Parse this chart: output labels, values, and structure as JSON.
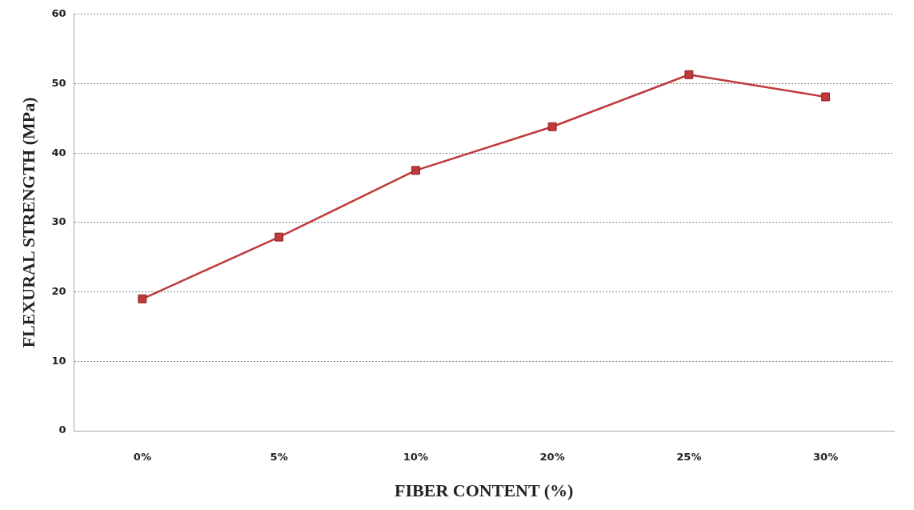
{
  "chart_data": {
    "type": "line",
    "xlabel": "FIBER CONTENT (%)",
    "ylabel": "FLEXURAL STRENGTH (MPa)",
    "categories": [
      "0%",
      "5%",
      "10%",
      "20%",
      "25%",
      "30%"
    ],
    "series": [
      {
        "color": "#c0393b",
        "values": [
          19.0,
          27.9,
          37.5,
          43.8,
          51.3,
          48.1
        ]
      }
    ],
    "ylim": [
      0,
      60
    ],
    "yticks": [
      0,
      10,
      20,
      30,
      40,
      50,
      60
    ],
    "grid": "y",
    "legend": false,
    "marker": "square",
    "line_style": "solid"
  }
}
